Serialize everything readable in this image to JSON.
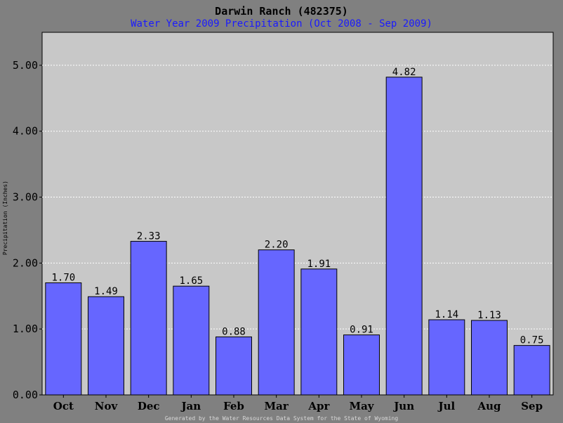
{
  "chart_data": {
    "type": "bar",
    "title": "Darwin Ranch (482375)",
    "subtitle": "Water Year 2009 Precipitation (Oct 2008 - Sep 2009)",
    "ylabel": "Precipitation (Inches)",
    "footer": "Generated by the Water Resources Data System for the State of Wyoming",
    "categories": [
      "Oct",
      "Nov",
      "Dec",
      "Jan",
      "Feb",
      "Mar",
      "Apr",
      "May",
      "Jun",
      "Jul",
      "Aug",
      "Sep"
    ],
    "values": [
      1.7,
      1.49,
      2.33,
      1.65,
      0.88,
      2.2,
      1.91,
      0.91,
      4.82,
      1.14,
      1.13,
      0.75
    ],
    "value_labels": [
      "1.70",
      "1.49",
      "2.33",
      "1.65",
      "0.88",
      "2.20",
      "1.91",
      "0.91",
      "4.82",
      "1.14",
      "1.13",
      "0.75"
    ],
    "yticks": [
      0,
      1,
      2,
      3,
      4,
      5
    ],
    "ytick_labels": [
      "0.00",
      "1.00",
      "2.00",
      "3.00",
      "4.00",
      "5.00"
    ],
    "ylim": [
      0,
      5.5
    ],
    "grid": true,
    "colors": {
      "bar": "#6666ff",
      "plot_bg": "#c8c8c8",
      "frame_bg": "#808080",
      "grid": "#ffffff",
      "subtitle": "#1a1aff"
    }
  }
}
